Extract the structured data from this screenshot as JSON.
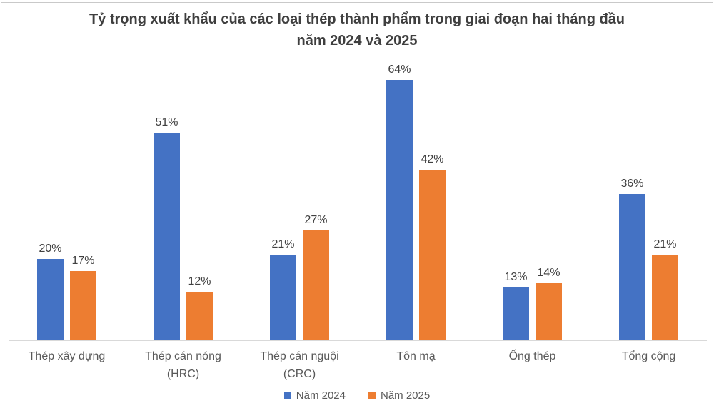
{
  "chart_data": {
    "type": "bar",
    "title": "Tỷ trọng xuất khẩu của các loại thép thành phẩm trong giai đoạn hai tháng đầu năm 2024 và 2025",
    "title_line1": "Tỷ trọng xuất khẩu của các loại thép thành phẩm trong giai đoạn hai tháng đầu",
    "title_line2": "năm 2024 và 2025",
    "categories": [
      "Thép xây dựng",
      "Thép cán nóng\n(HRC)",
      "Thép cán nguội\n(CRC)",
      "Tôn mạ",
      "Ống thép",
      "Tổng cộng"
    ],
    "series": [
      {
        "name": "Năm 2024",
        "color": "#4472C4",
        "values": [
          20,
          51,
          21,
          64,
          13,
          36
        ]
      },
      {
        "name": "Năm 2025",
        "color": "#ED7D31",
        "values": [
          17,
          12,
          27,
          42,
          14,
          21
        ]
      }
    ],
    "value_suffix": "%",
    "data_labels": true,
    "ylim": [
      0,
      70
    ],
    "grid": false,
    "y_axis_visible": false,
    "legend_position": "bottom",
    "axis_line_color": "#D9D9D9",
    "label_color": "#404040",
    "category_color": "#595959"
  }
}
